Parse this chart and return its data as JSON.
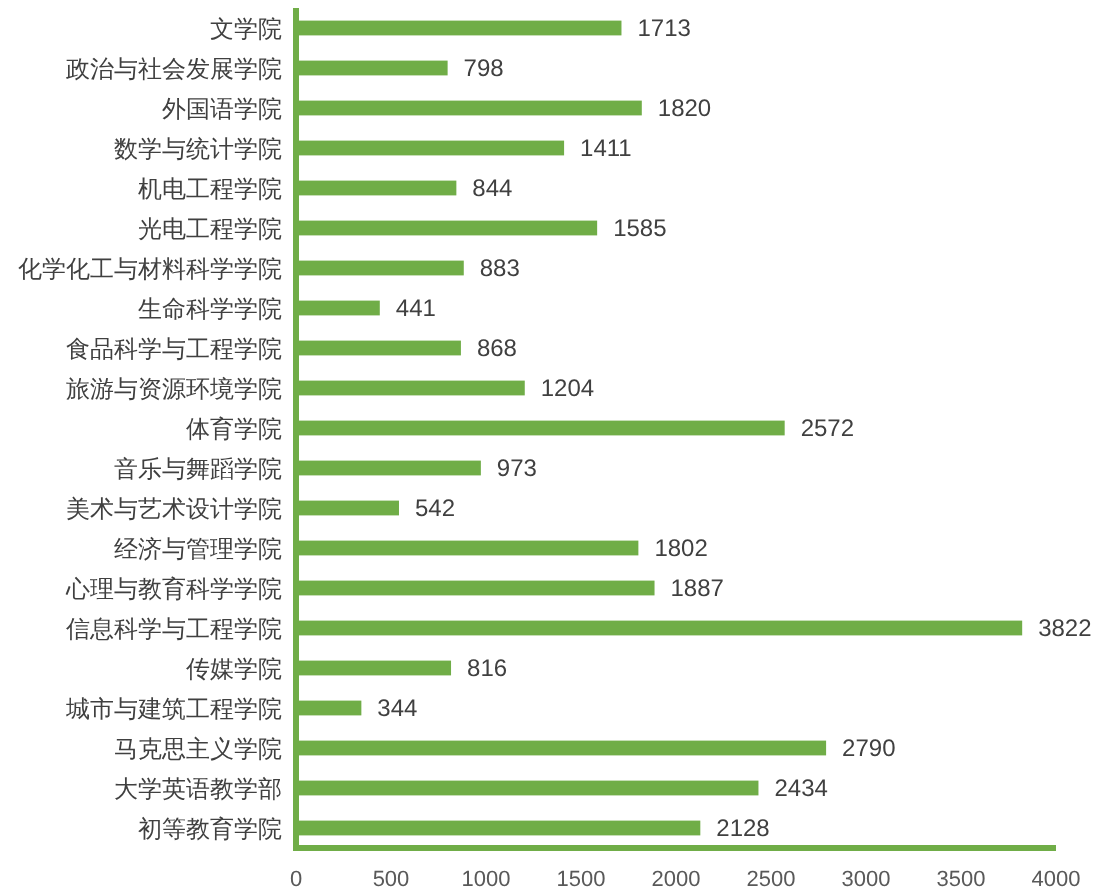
{
  "chart_data": {
    "type": "bar",
    "orientation": "horizontal",
    "categories": [
      "文学院",
      "政治与社会发展学院",
      "外国语学院",
      "数学与统计学院",
      "机电工程学院",
      "光电工程学院",
      "化学化工与材料科学学院",
      "生命科学学院",
      "食品科学与工程学院",
      "旅游与资源环境学院",
      "体育学院",
      "音乐与舞蹈学院",
      "美术与艺术设计学院",
      "经济与管理学院",
      "心理与教育科学学院",
      "信息科学与工程学院",
      "传媒学院",
      "城市与建筑工程学院",
      "马克思主义学院",
      "大学英语教学部",
      "初等教育学院"
    ],
    "values": [
      1713,
      798,
      1820,
      1411,
      844,
      1585,
      883,
      441,
      868,
      1204,
      2572,
      973,
      542,
      1802,
      1887,
      3822,
      816,
      344,
      2790,
      2434,
      2128
    ],
    "color": "#70ad47",
    "xlim": [
      0,
      4000
    ],
    "xticks": [
      0,
      500,
      1000,
      1500,
      2000,
      2500,
      3000,
      3500,
      4000
    ],
    "data_labels": true
  }
}
